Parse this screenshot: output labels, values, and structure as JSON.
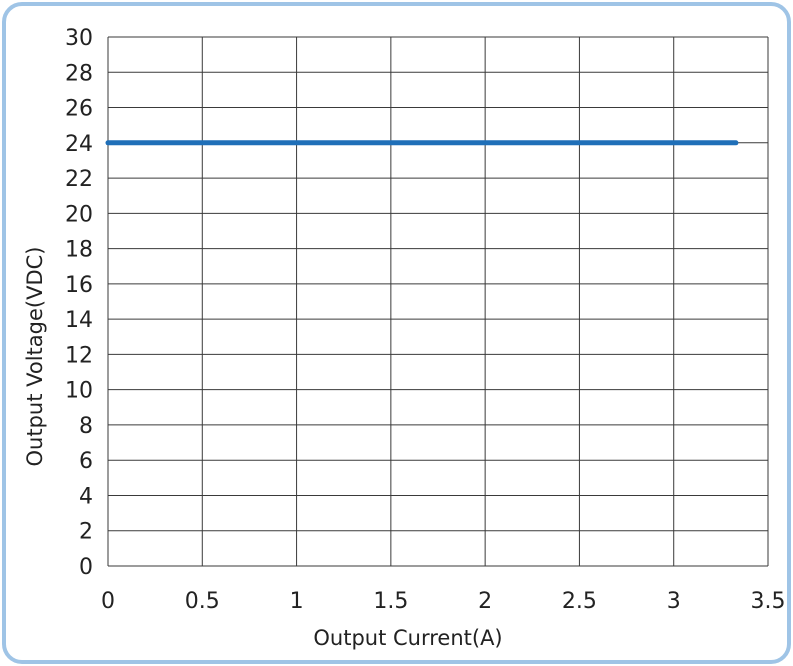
{
  "chart_data": {
    "type": "line",
    "title": "",
    "xlabel": "Output Current(A)",
    "ylabel": "Output Voltage(VDC)",
    "xlim": [
      0,
      3.5
    ],
    "ylim": [
      0,
      30
    ],
    "x_ticks": [
      "0",
      "0.5",
      "1",
      "1.5",
      "2",
      "2.5",
      "3",
      "3.5"
    ],
    "y_ticks": [
      "0",
      "2",
      "4",
      "6",
      "8",
      "10",
      "12",
      "14",
      "16",
      "18",
      "20",
      "22",
      "24",
      "26",
      "28",
      "30"
    ],
    "grid": true,
    "series": [
      {
        "x": [
          0,
          3.33
        ],
        "y": [
          24,
          24
        ],
        "color": "#1f6fb8"
      }
    ],
    "colors": {
      "grid": "#3a3a3a",
      "frame_border": "#9fc4e6",
      "line": "#1f6fb8"
    }
  }
}
